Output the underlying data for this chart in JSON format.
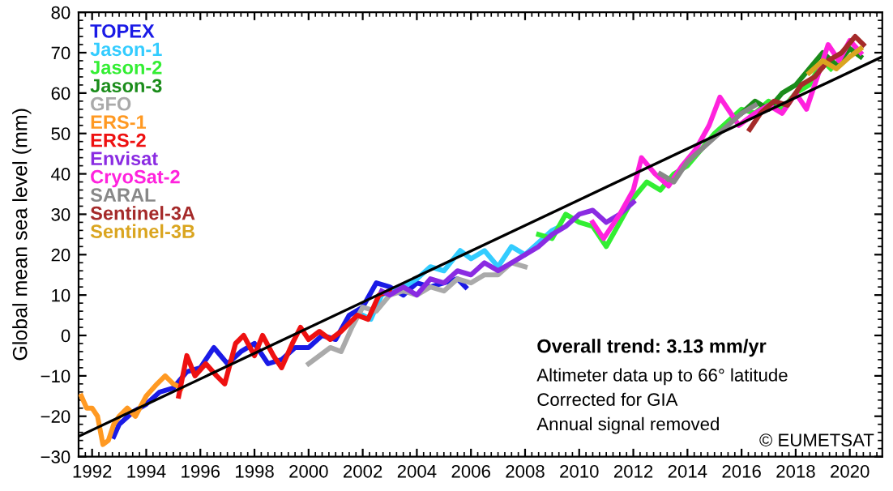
{
  "chart_data": {
    "type": "line",
    "ylabel": "Global mean sea level (mm)",
    "xlim": [
      1991.5,
      2021.2
    ],
    "xticks": [
      1992,
      1994,
      1996,
      1998,
      2000,
      2002,
      2004,
      2006,
      2008,
      2010,
      2012,
      2014,
      2016,
      2018,
      2020
    ],
    "ylim": [
      -30,
      80
    ],
    "yticks": [
      -30,
      -20,
      -10,
      0,
      10,
      20,
      30,
      40,
      50,
      60,
      70,
      80
    ],
    "grid": false,
    "legend": "top left",
    "marker": "none",
    "line_style": "solid",
    "series": [
      {
        "type": "line",
        "color": "#000000",
        "x": [
          1991.5,
          2021.2
        ],
        "values": [
          -25,
          69
        ]
      },
      {
        "name": "TOPEX",
        "color": "#1a1ae6",
        "x": [
          1992.8,
          1993.0,
          1993.5,
          1994.0,
          1994.5,
          1995.0,
          1995.5,
          1996.0,
          1996.5,
          1997.0,
          1997.5,
          1998.0,
          1998.5,
          1999.0,
          1999.5,
          2000.0,
          2000.5,
          2001.0,
          2001.5,
          2002.0,
          2002.5,
          2003.0,
          2003.5,
          2004.0,
          2004.5,
          2005.0,
          2005.5,
          2005.8
        ],
        "values": [
          -25,
          -22,
          -19,
          -17,
          -14,
          -13,
          -9,
          -8,
          -3,
          -7,
          -4,
          -2,
          -7,
          -6,
          -3,
          -3,
          0,
          -1,
          5,
          7,
          13,
          12,
          10,
          13,
          12,
          13,
          14,
          12
        ]
      },
      {
        "name": "Jason-1",
        "color": "#33ccff",
        "x": [
          2002.0,
          2002.3,
          2002.7,
          2003.0,
          2003.5,
          2004.0,
          2004.5,
          2005.0,
          2005.6,
          2006.0,
          2006.5,
          2007.0,
          2007.5,
          2008.0,
          2008.5,
          2009.0,
          2009.3
        ],
        "values": [
          5,
          4,
          10,
          11,
          12,
          14,
          17,
          16,
          21,
          19,
          21,
          17,
          22,
          20,
          23,
          26,
          27
        ]
      },
      {
        "name": "Jason-2",
        "color": "#33ee33",
        "x": [
          2008.5,
          2009.0,
          2009.5,
          2010.0,
          2010.5,
          2011.0,
          2011.5,
          2012.0,
          2012.5,
          2013.0,
          2013.5,
          2014.0,
          2014.5,
          2015.0,
          2015.5,
          2016.0,
          2016.5,
          2017.0,
          2017.5,
          2018.0,
          2018.5,
          2019.0,
          2019.3
        ],
        "values": [
          25,
          24,
          30,
          28,
          27,
          22,
          28,
          34,
          38,
          36,
          40,
          42,
          46,
          50,
          53,
          56,
          55,
          58,
          56,
          60,
          62,
          68,
          66
        ]
      },
      {
        "name": "Jason-3",
        "color": "#1a8c1a",
        "x": [
          2016.0,
          2016.5,
          2017.0,
          2017.5,
          2018.0,
          2018.5,
          2019.0,
          2019.5,
          2020.0,
          2020.4
        ],
        "values": [
          55,
          58,
          56,
          60,
          62,
          66,
          70,
          67,
          71,
          69
        ]
      },
      {
        "name": "GFO",
        "color": "#aaaaaa",
        "x": [
          2000.0,
          2000.4,
          2000.8,
          2001.2,
          2001.6,
          2002.0,
          2002.5,
          2003.0,
          2003.5,
          2004.0,
          2004.5,
          2005.0,
          2005.5,
          2006.0,
          2006.5,
          2007.0,
          2007.5,
          2008.0
        ],
        "values": [
          -7,
          -5,
          -3,
          -4,
          2,
          7,
          6,
          10,
          11,
          10,
          12,
          11,
          14,
          13,
          15,
          15,
          18,
          17
        ]
      },
      {
        "name": "ERS-1",
        "color": "#ff9922",
        "x": [
          1991.6,
          1991.8,
          1992.0,
          1992.2,
          1992.4,
          1992.6,
          1992.8,
          1993.0,
          1993.3,
          1993.6,
          1994.0,
          1994.4,
          1994.7,
          1995.0,
          1995.3
        ],
        "values": [
          -15,
          -18,
          -18,
          -20,
          -27,
          -26,
          -22,
          -20,
          -18,
          -20,
          -15,
          -12,
          -10,
          -12,
          -13
        ]
      },
      {
        "name": "ERS-2",
        "color": "#ee1111",
        "x": [
          1995.2,
          1995.5,
          1995.8,
          1996.2,
          1996.6,
          1996.9,
          1997.3,
          1997.6,
          1998.0,
          1998.3,
          1998.7,
          1999.0,
          1999.4,
          1999.7,
          2000.0,
          2000.4,
          2000.8,
          2001.2,
          2001.8,
          2002.2,
          2002.6,
          2003.0
        ],
        "values": [
          -15,
          -5,
          -10,
          -7,
          -10,
          -12,
          -2,
          0,
          -5,
          0,
          -5,
          -8,
          -2,
          2,
          -1,
          1,
          -1,
          1,
          5,
          4,
          10,
          11
        ]
      },
      {
        "name": "Envisat",
        "color": "#8a2be2",
        "x": [
          2002.7,
          2003.0,
          2003.5,
          2004.0,
          2004.5,
          2005.0,
          2005.5,
          2006.0,
          2006.5,
          2007.0,
          2007.5,
          2008.0,
          2008.5,
          2009.0,
          2009.5,
          2010.0,
          2010.5,
          2011.0,
          2011.5,
          2012.0
        ],
        "values": [
          11,
          10,
          12,
          10,
          14,
          13,
          16,
          15,
          18,
          16,
          18,
          20,
          22,
          25,
          27,
          30,
          31,
          28,
          30,
          33
        ]
      },
      {
        "name": "CryoSat-2",
        "color": "#ff22dd",
        "x": [
          2010.5,
          2010.9,
          2011.5,
          2012.0,
          2012.3,
          2012.8,
          2013.3,
          2013.8,
          2014.3,
          2014.8,
          2015.2,
          2015.6,
          2015.9,
          2016.5,
          2017.0,
          2017.5,
          2018.0,
          2018.4,
          2018.8,
          2019.2,
          2019.6,
          2020.0,
          2020.4
        ],
        "values": [
          28,
          24,
          30,
          36,
          44,
          40,
          37,
          42,
          46,
          52,
          59,
          55,
          52,
          55,
          57,
          55,
          60,
          56,
          64,
          72,
          68,
          73,
          70
        ]
      },
      {
        "name": "SARAL",
        "color": "#888888",
        "x": [
          2013.0,
          2013.5,
          2014.0,
          2014.5,
          2015.0,
          2015.5,
          2016.0,
          2016.5
        ],
        "values": [
          40,
          38,
          43,
          46,
          49,
          52,
          55,
          57
        ]
      },
      {
        "name": "Sentinel-3A",
        "color": "#a52a2a",
        "x": [
          2016.3,
          2016.7,
          2017.2,
          2017.7,
          2018.2,
          2018.7,
          2019.2,
          2019.7,
          2020.2,
          2020.5
        ],
        "values": [
          51,
          55,
          58,
          57,
          62,
          64,
          68,
          70,
          74,
          72
        ]
      },
      {
        "name": "Sentinel-3B",
        "color": "#daa520",
        "x": [
          2018.5,
          2019.0,
          2019.5,
          2020.0,
          2020.4
        ],
        "values": [
          65,
          68,
          66,
          69,
          71
        ]
      }
    ],
    "annotations": [
      "Overall trend: 3.13 mm/yr",
      "Altimeter data up to 66° latitude",
      "Corrected for GIA",
      "Annual signal removed",
      "© EUMETSAT"
    ]
  }
}
